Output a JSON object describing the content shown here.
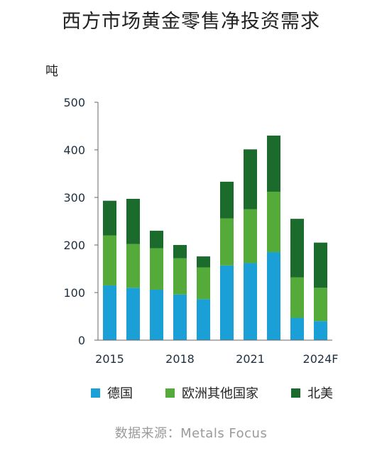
{
  "chart_data": {
    "type": "bar",
    "stacked": true,
    "title": "西方市场黄金零售净投资需求",
    "ylabel": "吨",
    "ylim": [
      0,
      500
    ],
    "yticks": [
      0,
      100,
      200,
      300,
      400,
      500
    ],
    "categories": [
      "2015",
      "2016",
      "2017",
      "2018",
      "2019",
      "2020",
      "2021",
      "2022",
      "2023",
      "2024F"
    ],
    "x_tick_labels": [
      "2015",
      "",
      "",
      "2018",
      "",
      "",
      "2021",
      "",
      "",
      "2024F"
    ],
    "series": [
      {
        "name": "德国",
        "color": "#1aa0d6",
        "values": [
          115,
          110,
          106,
          96,
          86,
          157,
          162,
          185,
          47,
          40
        ]
      },
      {
        "name": "欧洲其他国家",
        "color": "#55ab39",
        "values": [
          105,
          92,
          87,
          76,
          67,
          99,
          113,
          127,
          85,
          70
        ]
      },
      {
        "name": "北美",
        "color": "#1b6b2c",
        "values": [
          73,
          95,
          37,
          28,
          23,
          77,
          126,
          118,
          123,
          95
        ]
      }
    ],
    "legend_position": "bottom",
    "grid": false,
    "source": "数据来源：Metals Focus"
  }
}
